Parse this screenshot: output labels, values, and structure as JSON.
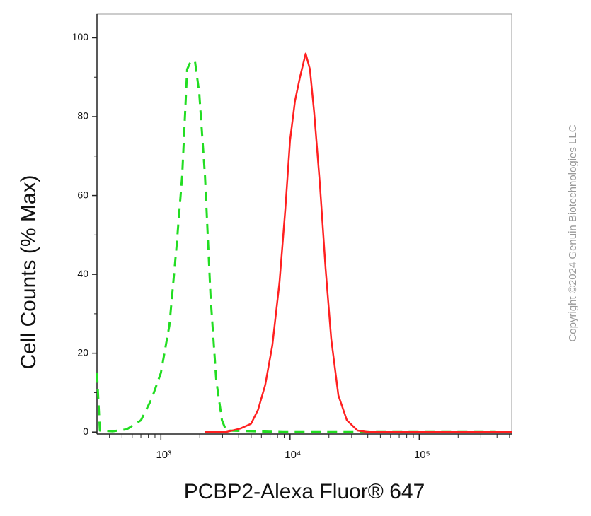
{
  "chart_data": {
    "type": "line",
    "y_label": "Cell Counts (% Max)",
    "x_label": "PCBP2-Alexa Fluor® 647",
    "copyright": "Copyright ©2024 Genuin Biotechnologies LLC",
    "xscale": "log",
    "xlim": [
      320,
      520000
    ],
    "ylim": [
      -0.5,
      106
    ],
    "xticks": [
      {
        "value": 1000,
        "label": "10³"
      },
      {
        "value": 10000,
        "label": "10⁴"
      },
      {
        "value": 100000,
        "label": "10⁵"
      }
    ],
    "xminor_ticks": [
      400,
      500,
      600,
      700,
      800,
      900,
      2000,
      3000,
      4000,
      5000,
      6000,
      7000,
      8000,
      9000,
      20000,
      30000,
      40000,
      50000,
      60000,
      70000,
      80000,
      90000,
      200000,
      300000,
      400000,
      500000
    ],
    "yticks": [
      0,
      20,
      40,
      60,
      80,
      100
    ],
    "yminor_ticks": [
      10,
      30,
      50,
      70,
      90
    ],
    "series": [
      {
        "color": "#22dd22",
        "dash": true,
        "x": [
          320,
          337,
          423,
          544,
          701,
          848,
          1000,
          1164,
          1321,
          1462,
          1597,
          1701,
          1836,
          1982,
          2193,
          2426,
          2684,
          2970,
          3200,
          8810,
          31260,
          392000
        ],
        "values": [
          15,
          0.4,
          0.2,
          0.7,
          3,
          8.4,
          15,
          27,
          47,
          65,
          92,
          94,
          94,
          86,
          65,
          34,
          13,
          3,
          0.4,
          0,
          0,
          0
        ]
      },
      {
        "color": "#ff2020",
        "dash": false,
        "x": [
          2193,
          3200,
          4121,
          4990,
          5662,
          6427,
          7295,
          8280,
          9160,
          10000,
          10920,
          11930,
          13210,
          14250,
          15380,
          17010,
          18830,
          20830,
          23660,
          27540,
          33270,
          40170,
          520000
        ],
        "values": [
          0,
          0,
          0.9,
          2.1,
          5.7,
          12,
          22,
          38,
          56,
          74,
          84,
          90,
          96,
          92,
          81,
          63,
          41.5,
          23.6,
          9.3,
          3,
          0.4,
          0,
          0
        ]
      }
    ]
  }
}
